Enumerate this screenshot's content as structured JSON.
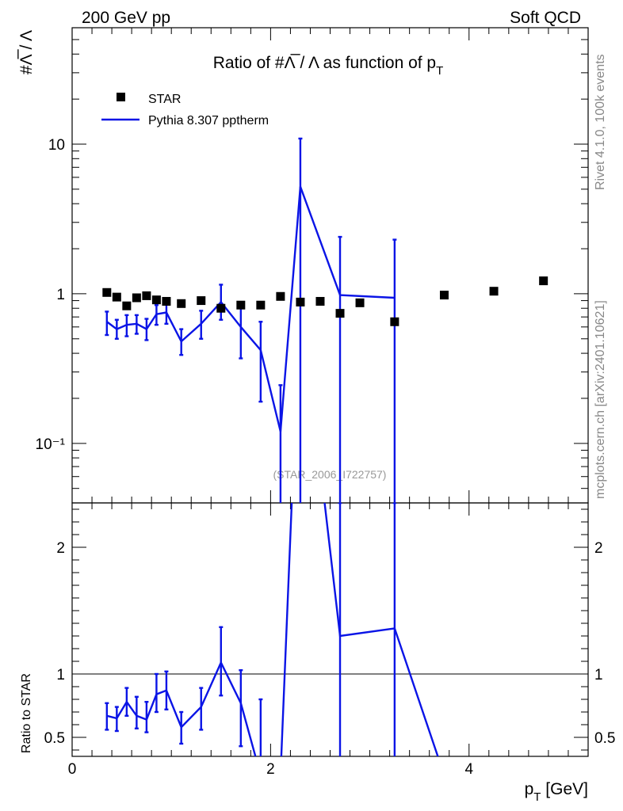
{
  "header": {
    "left": "200 GeV pp",
    "right": "Soft QCD"
  },
  "side_labels": {
    "rivet": "Rivet 4.1.0,  100k events",
    "mcplots": "mcplots.cern.ch [arXiv:2401.10621]"
  },
  "chart_data": {
    "type": "scatter",
    "title": "Ratio of #Λ̅ / Λ as function of p",
    "title_subscript": "T",
    "analysis_id": "(STAR_2006_I722757)",
    "xlabel": "p",
    "xlabel_subscript": "T",
    "xlabel_unit": " [GeV]",
    "ylabel": "#Λ̅ / Λ",
    "ratio_ylabel": "Ratio to STAR",
    "xlim": [
      0,
      5.2
    ],
    "ylim": [
      0.04,
      60
    ],
    "ylog": true,
    "ratio_ylim": [
      0.35,
      2.35
    ],
    "x_ticks": [
      0,
      2,
      4
    ],
    "x_tick_labels": [
      "0",
      "2",
      "4"
    ],
    "y_ticks": [
      0.1,
      1,
      10
    ],
    "y_tick_labels": [
      "10⁻¹",
      "1",
      "10"
    ],
    "ratio_ticks": [
      0.5,
      1,
      2
    ],
    "ratio_tick_labels": [
      "0.5",
      "1",
      "2"
    ],
    "legend": [
      "STAR",
      "Pythia 8.307 pptherm"
    ],
    "legend_position": "top-left",
    "series": [
      {
        "name": "STAR",
        "x": [
          0.35,
          0.45,
          0.55,
          0.65,
          0.75,
          0.85,
          0.95,
          1.1,
          1.3,
          1.5,
          1.7,
          1.9,
          2.1,
          2.3,
          2.5,
          2.7,
          2.9,
          3.25,
          3.75,
          4.25,
          4.75
        ],
        "y": [
          1.02,
          0.95,
          0.83,
          0.94,
          0.97,
          0.91,
          0.89,
          0.86,
          0.9,
          0.8,
          0.84,
          0.84,
          0.96,
          0.88,
          0.89,
          0.74,
          0.87,
          0.65,
          0.98,
          1.04,
          1.22
        ]
      },
      {
        "name": "Pythia 8.307 pptherm",
        "x": [
          0.35,
          0.45,
          0.55,
          0.65,
          0.75,
          0.85,
          0.95,
          1.1,
          1.3,
          1.5,
          1.7,
          1.9,
          2.1,
          2.3,
          2.7,
          3.25
        ],
        "y": [
          0.65,
          0.58,
          0.62,
          0.63,
          0.58,
          0.73,
          0.75,
          0.48,
          0.63,
          0.88,
          0.6,
          0.42,
          0.12,
          5.2,
          0.98,
          0.94
        ],
        "yerr_low": [
          0.53,
          0.5,
          0.52,
          0.54,
          0.49,
          0.62,
          0.63,
          0.39,
          0.5,
          0.67,
          0.37,
          0.19,
          0.001,
          0.001,
          0.001,
          0.001
        ],
        "yerr_high": [
          0.76,
          0.67,
          0.72,
          0.72,
          0.68,
          0.84,
          0.87,
          0.58,
          0.77,
          1.15,
          0.86,
          0.65,
          0.245,
          10.9,
          2.4,
          2.3
        ],
        "ratio": [
          0.67,
          0.65,
          0.78,
          0.67,
          0.64,
          0.84,
          0.87,
          0.58,
          0.74,
          1.09,
          0.77,
          0.2,
          0.2,
          4.0,
          1.3,
          1.36,
          0.2
        ],
        "ratio_x": [
          0.35,
          0.45,
          0.55,
          0.65,
          0.75,
          0.85,
          0.95,
          1.1,
          1.3,
          1.5,
          1.7,
          1.9,
          2.1,
          2.3,
          2.7,
          3.25,
          3.75
        ],
        "ratio_err_low": [
          0.56,
          0.55,
          0.67,
          0.57,
          0.54,
          0.7,
          0.72,
          0.45,
          0.56,
          0.83,
          0.43,
          0.2,
          0.2,
          0.2,
          0.2,
          0.2,
          0.2
        ],
        "ratio_err_high": [
          0.77,
          0.74,
          0.89,
          0.82,
          0.78,
          1.0,
          1.02,
          0.7,
          0.89,
          1.37,
          1.03,
          0.8,
          0.2,
          0.2,
          2.35,
          2.35,
          0.2
        ]
      }
    ]
  }
}
